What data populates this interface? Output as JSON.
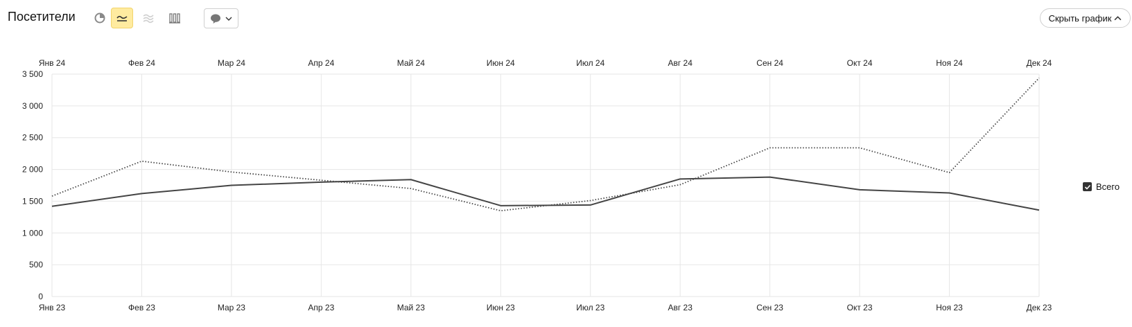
{
  "header": {
    "title": "Посетители",
    "hide_chart_label": "Скрыть график"
  },
  "toolbar": {
    "icons": [
      "pie-chart-icon",
      "line-chart-icon",
      "area-chart-icon",
      "bar-chart-icon",
      "comment-icon",
      "chevron-down-icon"
    ],
    "active": "line-chart-icon"
  },
  "legend": {
    "label": "Всего",
    "checked": true
  },
  "colors": {
    "line": "#444444",
    "grid": "#e6e6e6",
    "active_tool": "#ffeba0"
  },
  "chart_data": {
    "type": "line",
    "x_top": [
      "Янв 24",
      "Фев 24",
      "Мар 24",
      "Апр 24",
      "Май 24",
      "Июн 24",
      "Июл 24",
      "Авг 24",
      "Сен 24",
      "Окт 24",
      "Ноя 24",
      "Дек 24"
    ],
    "x_bottom": [
      "Янв 23",
      "Фев 23",
      "Мар 23",
      "Апр 23",
      "Май 23",
      "Июн 23",
      "Июл 23",
      "Авг 23",
      "Сен 23",
      "Окт 23",
      "Ноя 23",
      "Дек 23"
    ],
    "yticks": [
      0,
      500,
      1000,
      1500,
      2000,
      2500,
      3000,
      3500
    ],
    "ytick_labels": [
      "0",
      "500",
      "1 000",
      "1 500",
      "2 000",
      "2 500",
      "3 000",
      "3 500"
    ],
    "ylim": [
      0,
      3500
    ],
    "grid": true,
    "legend_position": "right",
    "series": [
      {
        "period": "2023",
        "style": "solid",
        "values": [
          1420,
          1620,
          1750,
          1800,
          1840,
          1430,
          1440,
          1850,
          1880,
          1680,
          1630,
          1360
        ]
      },
      {
        "period": "2024",
        "style": "dotted",
        "values": [
          1580,
          2130,
          1960,
          1830,
          1700,
          1350,
          1510,
          1760,
          2340,
          2340,
          1950,
          3440
        ]
      }
    ]
  }
}
